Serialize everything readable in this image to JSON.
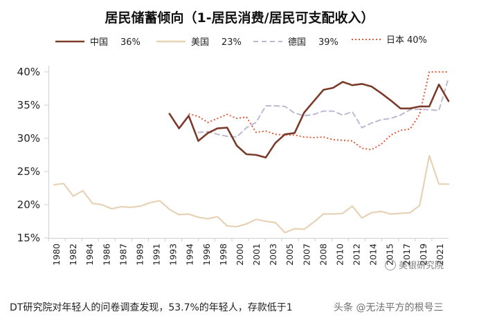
{
  "chart_data": {
    "type": "line",
    "title": "居民储蓄倾向（1-居民消费/居民可支配收入）",
    "xlabel": "",
    "ylabel": "",
    "ylim": [
      15,
      40
    ],
    "y_ticks": [
      "40%",
      "35%",
      "30%",
      "25%",
      "20%",
      "15%"
    ],
    "y_tick_values": [
      40,
      35,
      30,
      25,
      20,
      15
    ],
    "x_ticks": [
      "1980",
      "1982",
      "1984",
      "1986",
      "1987",
      "1989",
      "1991",
      "1993",
      "1994",
      "1996",
      "1998",
      "2000",
      "2001",
      "2003",
      "2005",
      "2007",
      "2008",
      "2010",
      "2012",
      "2014",
      "2015",
      "2017",
      "2019",
      "2021"
    ],
    "grid": false,
    "legend_position": "top",
    "series": [
      {
        "name": "中国",
        "legend_value": "36%",
        "color": "#7b3b2a",
        "style": "solid",
        "x": [
          1992,
          1993,
          1994,
          1995,
          1996,
          1997,
          1998,
          1999,
          2000,
          2001,
          2002,
          2003,
          2004,
          2005,
          2006,
          2007,
          2008,
          2009,
          2010,
          2011,
          2012,
          2013,
          2014,
          2015,
          2016,
          2017,
          2018,
          2019,
          2020,
          2021
        ],
        "values": [
          33.7,
          31.5,
          33.4,
          29.6,
          30.8,
          31.5,
          31.6,
          28.9,
          27.6,
          27.5,
          27.1,
          29.3,
          30.6,
          30.8,
          33.9,
          35.6,
          37.3,
          37.6,
          38.5,
          38.0,
          38.2,
          37.8,
          36.8,
          35.7,
          34.5,
          34.5,
          34.8,
          34.8,
          38.1,
          35.6
        ]
      },
      {
        "name": "美国",
        "legend_value": "23%",
        "color": "#e6d2b5",
        "style": "solid",
        "x": [
          1980,
          1981,
          1982,
          1983,
          1984,
          1985,
          1986,
          1987,
          1988,
          1989,
          1990,
          1991,
          1992,
          1993,
          1994,
          1995,
          1996,
          1997,
          1998,
          1999,
          2000,
          2001,
          2002,
          2003,
          2004,
          2005,
          2006,
          2007,
          2008,
          2009,
          2010,
          2011,
          2012,
          2013,
          2014,
          2015,
          2016,
          2017,
          2018,
          2019,
          2020,
          2021
        ],
        "values": [
          23.0,
          23.2,
          21.3,
          22.1,
          20.2,
          20.0,
          19.4,
          19.7,
          19.6,
          19.8,
          20.3,
          20.6,
          19.3,
          18.5,
          18.6,
          18.1,
          17.9,
          18.2,
          16.8,
          16.7,
          17.1,
          17.8,
          17.5,
          17.3,
          15.8,
          16.4,
          16.3,
          17.4,
          18.6,
          18.6,
          18.7,
          19.8,
          18.0,
          18.8,
          19.0,
          18.6,
          18.7,
          18.8,
          19.9,
          27.4,
          23.1,
          23.1
        ]
      },
      {
        "name": "德国",
        "legend_value": "39%",
        "color": "#bdb9d4",
        "style": "dashed",
        "x": [
          1995,
          1996,
          1997,
          1998,
          1999,
          2000,
          2001,
          2002,
          2003,
          2004,
          2005,
          2006,
          2007,
          2008,
          2009,
          2010,
          2011,
          2012,
          2013,
          2014,
          2015,
          2016,
          2017,
          2018,
          2019,
          2020,
          2021
        ],
        "values": [
          30.9,
          31.0,
          30.6,
          30.3,
          30.2,
          31.6,
          32.4,
          34.9,
          34.9,
          34.8,
          33.8,
          33.4,
          33.6,
          34.1,
          34.1,
          33.5,
          34.0,
          31.6,
          32.3,
          32.8,
          33.0,
          33.5,
          34.3,
          34.4,
          34.3,
          34.2,
          39.1
        ]
      },
      {
        "name": "日本",
        "legend_value": "40%",
        "color": "#e05a35",
        "style": "dotted",
        "x": [
          1994,
          1995,
          1996,
          1997,
          1998,
          1999,
          2000,
          2001,
          2002,
          2003,
          2004,
          2005,
          2006,
          2007,
          2008,
          2009,
          2010,
          2011,
          2012,
          2013,
          2014,
          2015,
          2016,
          2017,
          2018,
          2019,
          2020,
          2021
        ],
        "values": [
          33.7,
          33.3,
          32.4,
          33.0,
          33.6,
          33.0,
          33.2,
          30.9,
          31.1,
          30.6,
          30.5,
          30.5,
          30.2,
          30.1,
          30.2,
          29.8,
          29.7,
          29.6,
          28.5,
          28.3,
          29.1,
          30.5,
          31.2,
          31.4,
          33.6,
          40.0,
          40.0,
          40.0
        ]
      }
    ],
    "x_range": [
      1980,
      2021
    ]
  },
  "footer": {
    "caption": "DT研究院对年轻人的问卷调查发现，53.7%的年轻人，存款低于1",
    "caption_overlay": "头条 @无法平方的根号三",
    "watermark": "美银研究院"
  }
}
